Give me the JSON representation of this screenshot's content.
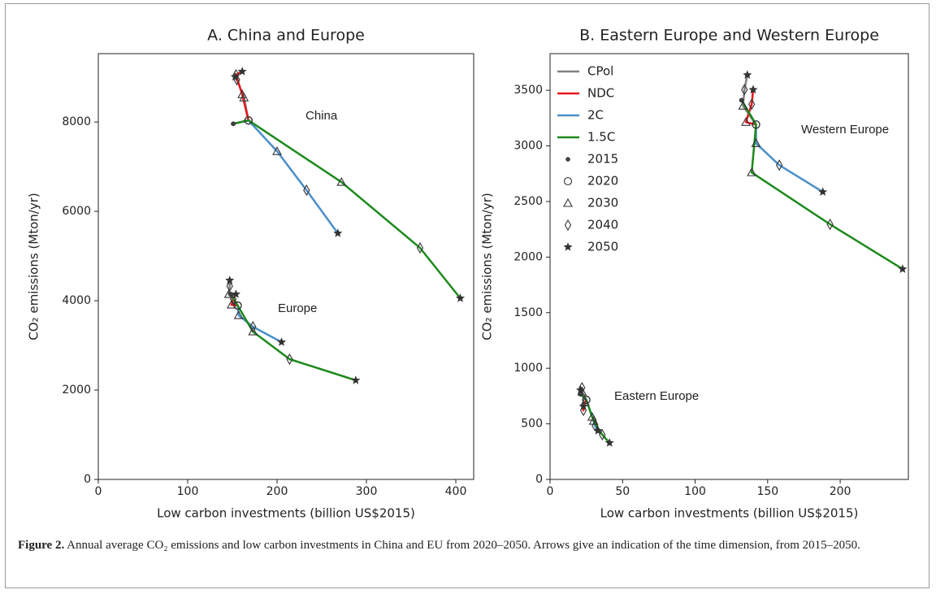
{
  "chart_data": [
    {
      "type": "line",
      "title": "A. China and Europe",
      "xlabel": "Low carbon investments (billion US$2015)",
      "ylabel": "CO₂ emissions (Mton/yr)",
      "xlim": [
        0,
        420
      ],
      "ylim": [
        0,
        9530
      ],
      "xticks": [
        0,
        100,
        200,
        300,
        400
      ],
      "yticks": [
        0,
        2000,
        4000,
        6000,
        8000
      ],
      "markers": [
        "point",
        "circle",
        "triangle",
        "diamond",
        "star"
      ],
      "regions": [
        {
          "label": "China",
          "series": [
            {
              "color": "#808080",
              "x": [
                151,
                168,
                163,
                155,
                153
              ],
              "y": [
                7960,
                8036,
                8545,
                8945,
                9010
              ]
            },
            {
              "color": "#e8141c",
              "x": [
                151,
                168,
                161,
                154,
                161
              ],
              "y": [
                7960,
                8036,
                8618,
                9055,
                9130
              ]
            },
            {
              "color": "#4a8fc9",
              "x": [
                151,
                168,
                200,
                233,
                268
              ],
              "y": [
                7960,
                8036,
                7345,
                6473,
                5509
              ]
            },
            {
              "color": "#1c8a1c",
              "x": [
                151,
                168,
                272,
                360,
                405
              ],
              "y": [
                7960,
                8036,
                6655,
                5182,
                4055
              ]
            }
          ]
        },
        {
          "label": "Europe",
          "series": [
            {
              "color": "#808080",
              "x": [
                148,
                156,
                146,
                147,
                147
              ],
              "y": [
                4150,
                3890,
                4145,
                4327,
                4455
              ]
            },
            {
              "color": "#e8141c",
              "x": [
                148,
                156,
                149,
                151,
                154
              ],
              "y": [
                4150,
                3890,
                3909,
                4036,
                4145
              ]
            },
            {
              "color": "#4a8fc9",
              "x": [
                148,
                156,
                157,
                173,
                205
              ],
              "y": [
                4150,
                3890,
                3673,
                3418,
                3073
              ]
            },
            {
              "color": "#1c8a1c",
              "x": [
                148,
                156,
                173,
                214,
                288
              ],
              "y": [
                4150,
                3890,
                3309,
                2691,
                2218
              ]
            }
          ]
        }
      ]
    },
    {
      "type": "line",
      "title": "B. Eastern Europe and Western Europe",
      "xlabel": "Low carbon investments (billion US$2015)",
      "ylabel": "CO₂ emissions (Mton/yr)",
      "xlim": [
        0,
        247
      ],
      "ylim": [
        0,
        3830
      ],
      "xticks": [
        0,
        50,
        100,
        150,
        200
      ],
      "yticks": [
        0,
        500,
        1000,
        1500,
        2000,
        2500,
        3000,
        3500
      ],
      "markers": [
        "point",
        "circle",
        "triangle",
        "diamond",
        "star"
      ],
      "legend": {
        "loc": "upper left",
        "entries": [
          {
            "name": "CPol",
            "color": "#808080"
          },
          {
            "name": "NDC",
            "color": "#e8141c"
          },
          {
            "name": "2C",
            "color": "#4a8fc9"
          },
          {
            "name": "1.5C",
            "color": "#1c8a1c"
          }
        ],
        "years": [
          2015,
          2020,
          2030,
          2040,
          2050
        ]
      },
      "regions": [
        {
          "label": "Western Europe",
          "series": [
            {
              "color": "#808080",
              "x": [
                132,
                142,
                133,
                134,
                136
              ],
              "y": [
                3411,
                3192,
                3360,
                3506,
                3638
              ]
            },
            {
              "color": "#e8141c",
              "x": [
                132,
                142,
                135,
                139,
                140
              ],
              "y": [
                3411,
                3192,
                3214,
                3375,
                3506
              ]
            },
            {
              "color": "#4a8fc9",
              "x": [
                132,
                142,
                142,
                158,
                188
              ],
              "y": [
                3411,
                3192,
                3024,
                2827,
                2586
              ]
            },
            {
              "color": "#1c8a1c",
              "x": [
                132,
                142,
                139,
                193,
                243
              ],
              "y": [
                3411,
                3192,
                2761,
                2294,
                1892
              ]
            }
          ]
        },
        {
          "label": "Eastern Europe",
          "series": [
            {
              "color": "#808080",
              "x": [
                21,
                25,
                22,
                22,
                21
              ],
              "y": [
                767,
                716,
                789,
                825,
                803
              ]
            },
            {
              "color": "#e8141c",
              "x": [
                21,
                25,
                24,
                23,
                23
              ],
              "y": [
                767,
                716,
                694,
                621,
                657
              ]
            },
            {
              "color": "#4a8fc9",
              "x": [
                21,
                25,
                29,
                31,
                33
              ],
              "y": [
                767,
                716,
                562,
                482,
                438
              ]
            },
            {
              "color": "#1c8a1c",
              "x": [
                21,
                25,
                30,
                36,
                41
              ],
              "y": [
                767,
                716,
                526,
                402,
                329
              ]
            }
          ]
        }
      ]
    }
  ],
  "caption": {
    "label": "Figure 2.",
    "text": "Annual average CO₂ emissions and low carbon investments in China and EU from 2020–2050. Arrows give an indication of the time dimension, from 2015–2050."
  }
}
